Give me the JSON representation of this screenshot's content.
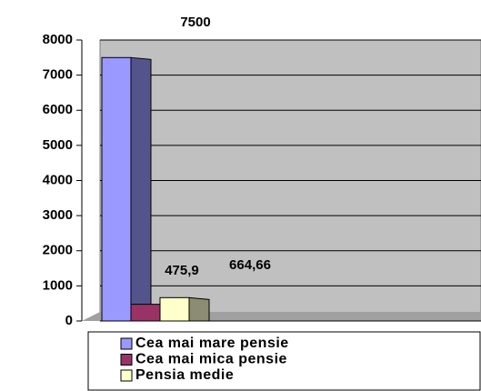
{
  "chart_data": {
    "type": "bar",
    "categories": [
      null
    ],
    "series": [
      {
        "name": "Cea mai mare pensie",
        "color": "#9999ff",
        "values": [
          7500
        ],
        "value_labels": [
          "7500"
        ]
      },
      {
        "name": "Cea mai mica pensie",
        "color": "#993366",
        "values": [
          475.9
        ],
        "value_labels": [
          "475,9"
        ]
      },
      {
        "name": "Pensia medie",
        "color": "#ffffcc",
        "values": [
          664.66
        ],
        "value_labels": [
          "664,66"
        ]
      }
    ],
    "ylim": [
      0,
      8000
    ],
    "yticks": [
      0,
      1000,
      2000,
      3000,
      4000,
      5000,
      6000,
      7000,
      8000
    ],
    "grid": true,
    "legend": "bottom"
  }
}
